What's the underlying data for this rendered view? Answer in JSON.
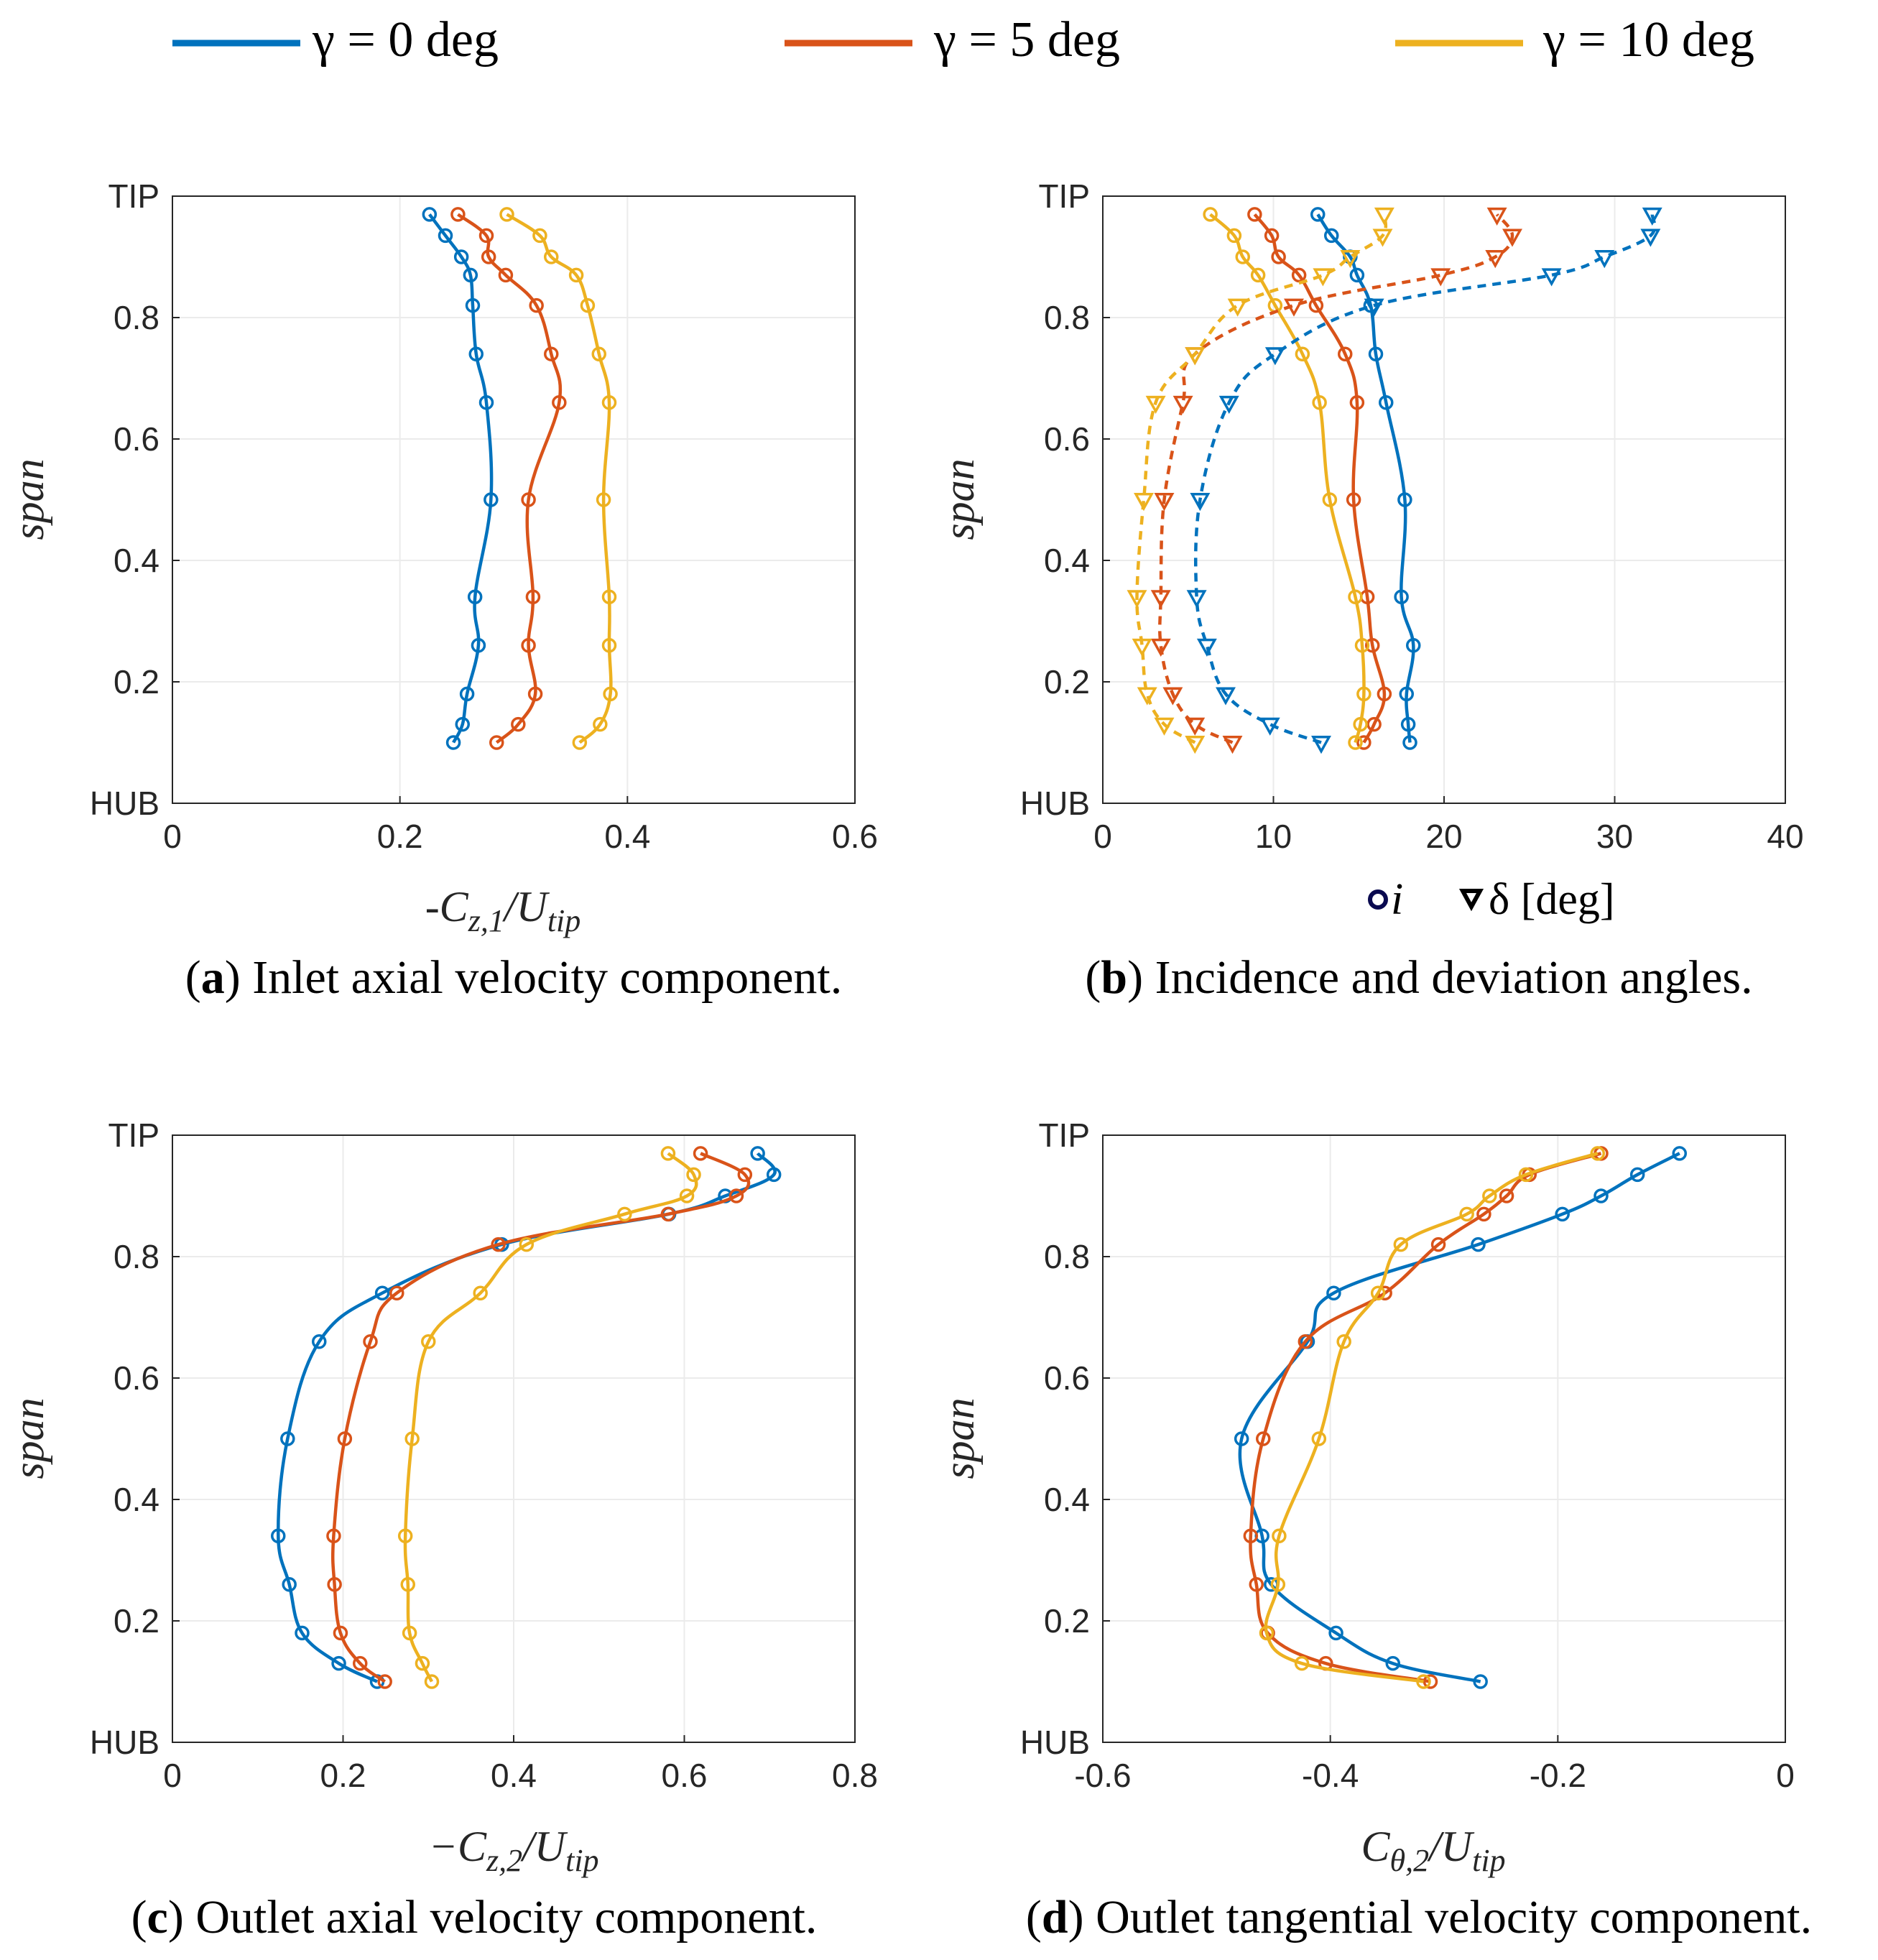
{
  "legend": {
    "entries": [
      {
        "label": "γ = 0 deg",
        "color": "#0072BD"
      },
      {
        "label": "γ = 5 deg",
        "color": "#D95319"
      },
      {
        "label": "γ = 10 deg",
        "color": "#EDB120"
      }
    ]
  },
  "colors": {
    "gamma0": "#0072BD",
    "gamma5": "#D95319",
    "gamma10": "#EDB120",
    "grid": "#ebebeb",
    "axis": "#262626"
  },
  "chart_data": [
    {
      "type": "line",
      "panel_letter": "a",
      "caption": "Inlet axial velocity component.",
      "xlabel": "-Cz,1/Utip",
      "ylabel": "span",
      "xlim": [
        0,
        0.6
      ],
      "ylim": [
        0,
        1
      ],
      "xticks": [
        "0",
        "0.2",
        "0.4",
        "0.6"
      ],
      "yticks": [
        "HUB",
        "0.2",
        "0.4",
        "0.6",
        "0.8",
        "TIP"
      ],
      "grid": true,
      "y": [
        0.1,
        0.13,
        0.18,
        0.26,
        0.34,
        0.5,
        0.66,
        0.74,
        0.82,
        0.87,
        0.9,
        0.935,
        0.97
      ],
      "series": [
        {
          "name": "γ = 0 deg",
          "x": [
            0.247,
            0.255,
            0.259,
            0.269,
            0.266,
            0.28,
            0.276,
            0.267,
            0.264,
            0.262,
            0.254,
            0.24,
            0.226
          ]
        },
        {
          "name": "γ = 5 deg",
          "x": [
            0.285,
            0.304,
            0.319,
            0.313,
            0.317,
            0.313,
            0.34,
            0.333,
            0.32,
            0.293,
            0.278,
            0.276,
            0.251
          ]
        },
        {
          "name": "γ = 10 deg",
          "x": [
            0.358,
            0.376,
            0.385,
            0.384,
            0.384,
            0.379,
            0.384,
            0.375,
            0.365,
            0.355,
            0.333,
            0.323,
            0.294
          ]
        }
      ]
    },
    {
      "type": "line",
      "panel_letter": "b",
      "caption": "Incidence and deviation angles.",
      "xlabel": "i  δ [deg]",
      "ylabel": "span",
      "marker_key": {
        "circle": "i",
        "triangle": "δ [deg]"
      },
      "xlim": [
        0,
        40
      ],
      "ylim": [
        0,
        1
      ],
      "xticks": [
        "0",
        "10",
        "20",
        "30",
        "40"
      ],
      "yticks": [
        "HUB",
        "0.2",
        "0.4",
        "0.6",
        "0.8",
        "TIP"
      ],
      "grid": true,
      "y": [
        0.1,
        0.13,
        0.18,
        0.26,
        0.34,
        0.5,
        0.66,
        0.74,
        0.82,
        0.87,
        0.9,
        0.935,
        0.97
      ],
      "series": [
        {
          "name": "γ = 0 deg",
          "quantity": "i",
          "x": [
            18.0,
            17.9,
            17.8,
            18.2,
            17.5,
            17.7,
            16.6,
            16.0,
            15.7,
            14.9,
            14.5,
            13.4,
            12.6
          ]
        },
        {
          "name": "γ = 5 deg",
          "quantity": "i",
          "x": [
            15.3,
            15.9,
            16.5,
            15.8,
            15.5,
            14.7,
            14.9,
            14.2,
            12.5,
            11.5,
            10.3,
            9.9,
            8.9
          ]
        },
        {
          "name": "γ = 10 deg",
          "quantity": "i",
          "x": [
            14.8,
            15.1,
            15.3,
            15.2,
            14.8,
            13.3,
            12.7,
            11.7,
            10.1,
            9.1,
            8.2,
            7.7,
            6.3
          ]
        },
        {
          "name": "γ = 0 deg",
          "quantity": "δ",
          "x": [
            12.8,
            9.8,
            7.2,
            6.1,
            5.5,
            5.7,
            7.4,
            10.1,
            15.9,
            26.3,
            29.4,
            32.1,
            32.2
          ]
        },
        {
          "name": "γ = 5 deg",
          "quantity": "δ",
          "x": [
            7.6,
            5.4,
            4.1,
            3.4,
            3.4,
            3.6,
            4.7,
            5.4,
            11.2,
            19.8,
            23.0,
            24.0,
            23.1
          ]
        },
        {
          "name": "γ = 10 deg",
          "quantity": "δ",
          "x": [
            5.4,
            3.6,
            2.6,
            2.3,
            2.0,
            2.4,
            3.1,
            5.4,
            7.9,
            12.9,
            14.5,
            16.4,
            16.5
          ]
        }
      ]
    },
    {
      "type": "line",
      "panel_letter": "c",
      "caption": "Outlet axial velocity component.",
      "xlabel": "−Cz,2/Utip",
      "ylabel": "span",
      "xlim": [
        0,
        0.8
      ],
      "ylim": [
        0,
        1
      ],
      "xticks": [
        "0",
        "0.2",
        "0.4",
        "0.6",
        "0.8"
      ],
      "yticks": [
        "HUB",
        "0.2",
        "0.4",
        "0.6",
        "0.8",
        "TIP"
      ],
      "grid": true,
      "y": [
        0.1,
        0.13,
        0.18,
        0.26,
        0.34,
        0.5,
        0.66,
        0.74,
        0.82,
        0.87,
        0.9,
        0.935,
        0.97
      ],
      "series": [
        {
          "name": "γ = 0 deg",
          "x": [
            0.24,
            0.195,
            0.152,
            0.137,
            0.124,
            0.135,
            0.172,
            0.246,
            0.386,
            0.582,
            0.648,
            0.705,
            0.686
          ]
        },
        {
          "name": "γ = 5 deg",
          "x": [
            0.249,
            0.22,
            0.197,
            0.19,
            0.189,
            0.202,
            0.232,
            0.263,
            0.382,
            0.581,
            0.661,
            0.671,
            0.619
          ]
        },
        {
          "name": "γ = 10 deg",
          "x": [
            0.304,
            0.293,
            0.278,
            0.276,
            0.273,
            0.281,
            0.3,
            0.361,
            0.415,
            0.53,
            0.603,
            0.611,
            0.581
          ]
        }
      ]
    },
    {
      "type": "line",
      "panel_letter": "d",
      "caption": "Outlet tangential velocity component.",
      "xlabel": "Cθ,2/Utip",
      "ylabel": "span",
      "xlim": [
        -0.6,
        0
      ],
      "ylim": [
        0,
        1
      ],
      "xticks": [
        "-0.6",
        "-0.4",
        "-0.2",
        "0"
      ],
      "yticks": [
        "HUB",
        "0.2",
        "0.4",
        "0.6",
        "0.8",
        "TIP"
      ],
      "grid": true,
      "y": [
        0.1,
        0.13,
        0.18,
        0.26,
        0.34,
        0.5,
        0.66,
        0.74,
        0.82,
        0.87,
        0.9,
        0.935,
        0.97
      ],
      "series": [
        {
          "name": "γ = 0 deg",
          "x": [
            -0.268,
            -0.345,
            -0.395,
            -0.452,
            -0.46,
            -0.478,
            -0.42,
            -0.397,
            -0.27,
            -0.196,
            -0.162,
            -0.13,
            -0.093
          ]
        },
        {
          "name": "γ = 5 deg",
          "x": [
            -0.312,
            -0.404,
            -0.455,
            -0.465,
            -0.47,
            -0.459,
            -0.422,
            -0.352,
            -0.305,
            -0.265,
            -0.245,
            -0.225,
            -0.162
          ]
        },
        {
          "name": "γ = 10 deg",
          "x": [
            -0.318,
            -0.425,
            -0.456,
            -0.446,
            -0.445,
            -0.41,
            -0.388,
            -0.358,
            -0.338,
            -0.28,
            -0.26,
            -0.228,
            -0.165
          ]
        }
      ]
    }
  ]
}
